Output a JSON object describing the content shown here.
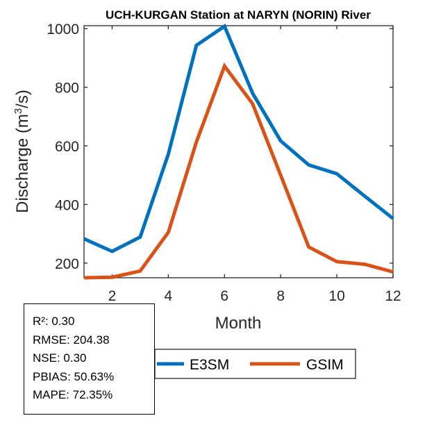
{
  "chart_data": {
    "type": "line",
    "title": "UCH-KURGAN  Station at  NARYN (NORIN)  River",
    "xlabel": "Month",
    "ylabel_main": "Discharge (m",
    "ylabel_sup": "3",
    "ylabel_end": "/s)",
    "x": [
      1,
      2,
      3,
      4,
      5,
      6,
      7,
      8,
      9,
      10,
      11,
      12
    ],
    "xlim": [
      1,
      12
    ],
    "ylim": [
      150,
      1010
    ],
    "xticks": [
      2,
      4,
      6,
      8,
      10,
      12
    ],
    "yticks": [
      200,
      400,
      600,
      800,
      1000
    ],
    "grid": false,
    "legend_position": "below-center",
    "series": [
      {
        "name": "E3SM",
        "color": "#0072BD",
        "values": [
          283,
          240,
          289,
          572,
          943,
          1008,
          780,
          617,
          535,
          505,
          428,
          352
        ]
      },
      {
        "name": "GSIM",
        "color": "#D95319",
        "values": [
          150,
          152,
          173,
          305,
          613,
          872,
          744,
          500,
          255,
          205,
          196,
          170
        ]
      }
    ]
  },
  "stats": [
    "R²: 0.30",
    "RMSE: 204.38",
    "NSE: 0.30",
    "PBIAS: 50.63%",
    "MAPE: 72.35%"
  ]
}
